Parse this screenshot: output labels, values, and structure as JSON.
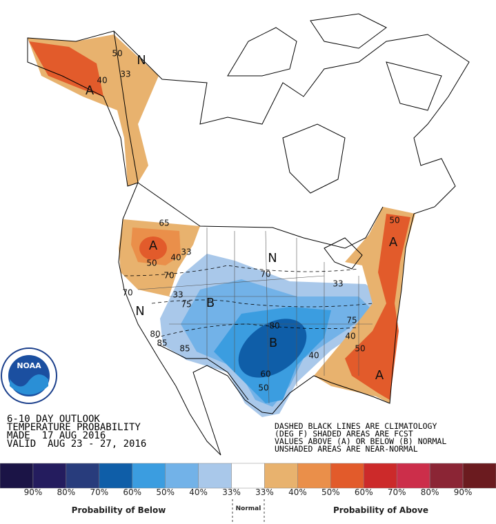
{
  "header": {
    "lines": [
      "6-10 DAY OUTLOOK",
      "TEMPERATURE PROBABILITY",
      "MADE  17 AUG 2016",
      "VALID  AUG 23 - 27, 2016"
    ]
  },
  "notes": [
    "DASHED BLACK LINES ARE CLIMATOLOGY",
    "(DEG F) SHADED AREAS ARE FCST",
    "VALUES ABOVE (A) OR BELOW (B) NORMAL",
    "UNSHADED AREAS ARE NEAR-NORMAL"
  ],
  "logo": "NOAA",
  "map_labels": [
    {
      "text": "A",
      "kind": "region"
    },
    {
      "text": "A",
      "kind": "region"
    },
    {
      "text": "A",
      "kind": "region"
    },
    {
      "text": "A",
      "kind": "region"
    },
    {
      "text": "B",
      "kind": "region"
    },
    {
      "text": "B",
      "kind": "region"
    },
    {
      "text": "N",
      "kind": "region"
    },
    {
      "text": "N",
      "kind": "region"
    },
    {
      "text": "N",
      "kind": "region"
    },
    {
      "text": "33",
      "kind": "contour"
    },
    {
      "text": "40",
      "kind": "contour"
    },
    {
      "text": "50",
      "kind": "contour"
    },
    {
      "text": "65",
      "kind": "contour"
    },
    {
      "text": "50",
      "kind": "contour"
    },
    {
      "text": "40",
      "kind": "contour"
    },
    {
      "text": "33",
      "kind": "contour"
    },
    {
      "text": "70",
      "kind": "contour"
    },
    {
      "text": "70",
      "kind": "contour"
    },
    {
      "text": "33",
      "kind": "contour"
    },
    {
      "text": "75",
      "kind": "contour"
    },
    {
      "text": "80",
      "kind": "contour"
    },
    {
      "text": "85",
      "kind": "contour"
    },
    {
      "text": "85",
      "kind": "contour"
    },
    {
      "text": "80",
      "kind": "contour"
    },
    {
      "text": "60",
      "kind": "contour"
    },
    {
      "text": "50",
      "kind": "contour"
    },
    {
      "text": "40",
      "kind": "contour"
    },
    {
      "text": "40",
      "kind": "contour"
    },
    {
      "text": "50",
      "kind": "contour"
    },
    {
      "text": "75",
      "kind": "contour"
    },
    {
      "text": "70",
      "kind": "contour"
    },
    {
      "text": "33",
      "kind": "contour"
    },
    {
      "text": "50",
      "kind": "contour"
    }
  ],
  "legend": {
    "colors": [
      "#1b1446",
      "#241c5e",
      "#283c7c",
      "#0f5ea8",
      "#3b9de0",
      "#72b2e8",
      "#a9c8ea",
      "#ffffff",
      "#e8b26e",
      "#ea8f4a",
      "#e25b2b",
      "#cc2a2a",
      "#cc2e4a",
      "#8b2535",
      "#6b1b1f"
    ],
    "labels": [
      "90%",
      "80%",
      "70%",
      "60%",
      "50%",
      "40%",
      "33%",
      "33%",
      "40%",
      "50%",
      "60%",
      "70%",
      "80%",
      "90%"
    ],
    "below_title": "Probability of Below",
    "normal_title": "Normal",
    "above_title": "Probability of Above"
  }
}
